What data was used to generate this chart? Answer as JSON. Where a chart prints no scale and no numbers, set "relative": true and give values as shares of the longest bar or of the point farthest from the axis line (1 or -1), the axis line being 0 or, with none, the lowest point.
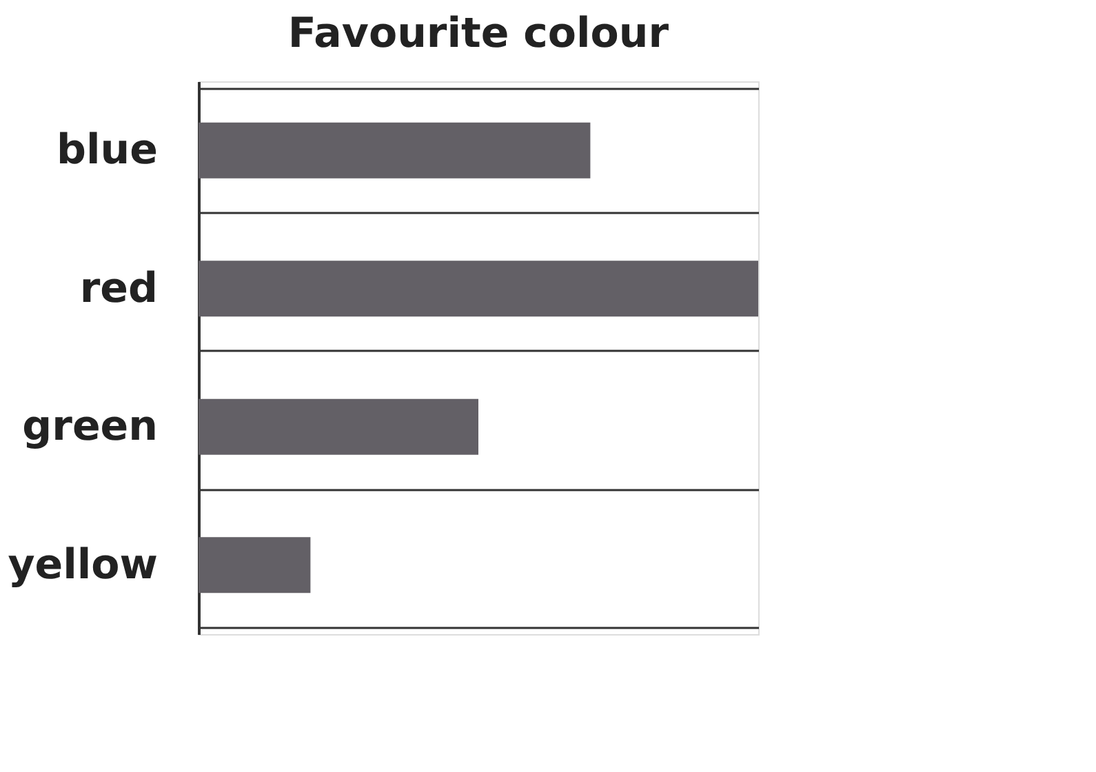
{
  "chart_data": {
    "type": "bar",
    "title": "Favourite colour",
    "orientation": "horizontal",
    "relative": true,
    "categories": [
      "blue",
      "red",
      "green",
      "yellow"
    ],
    "values": [
      0.7,
      1,
      0.5,
      0.2
    ],
    "color": "#636066",
    "grid": "y"
  }
}
